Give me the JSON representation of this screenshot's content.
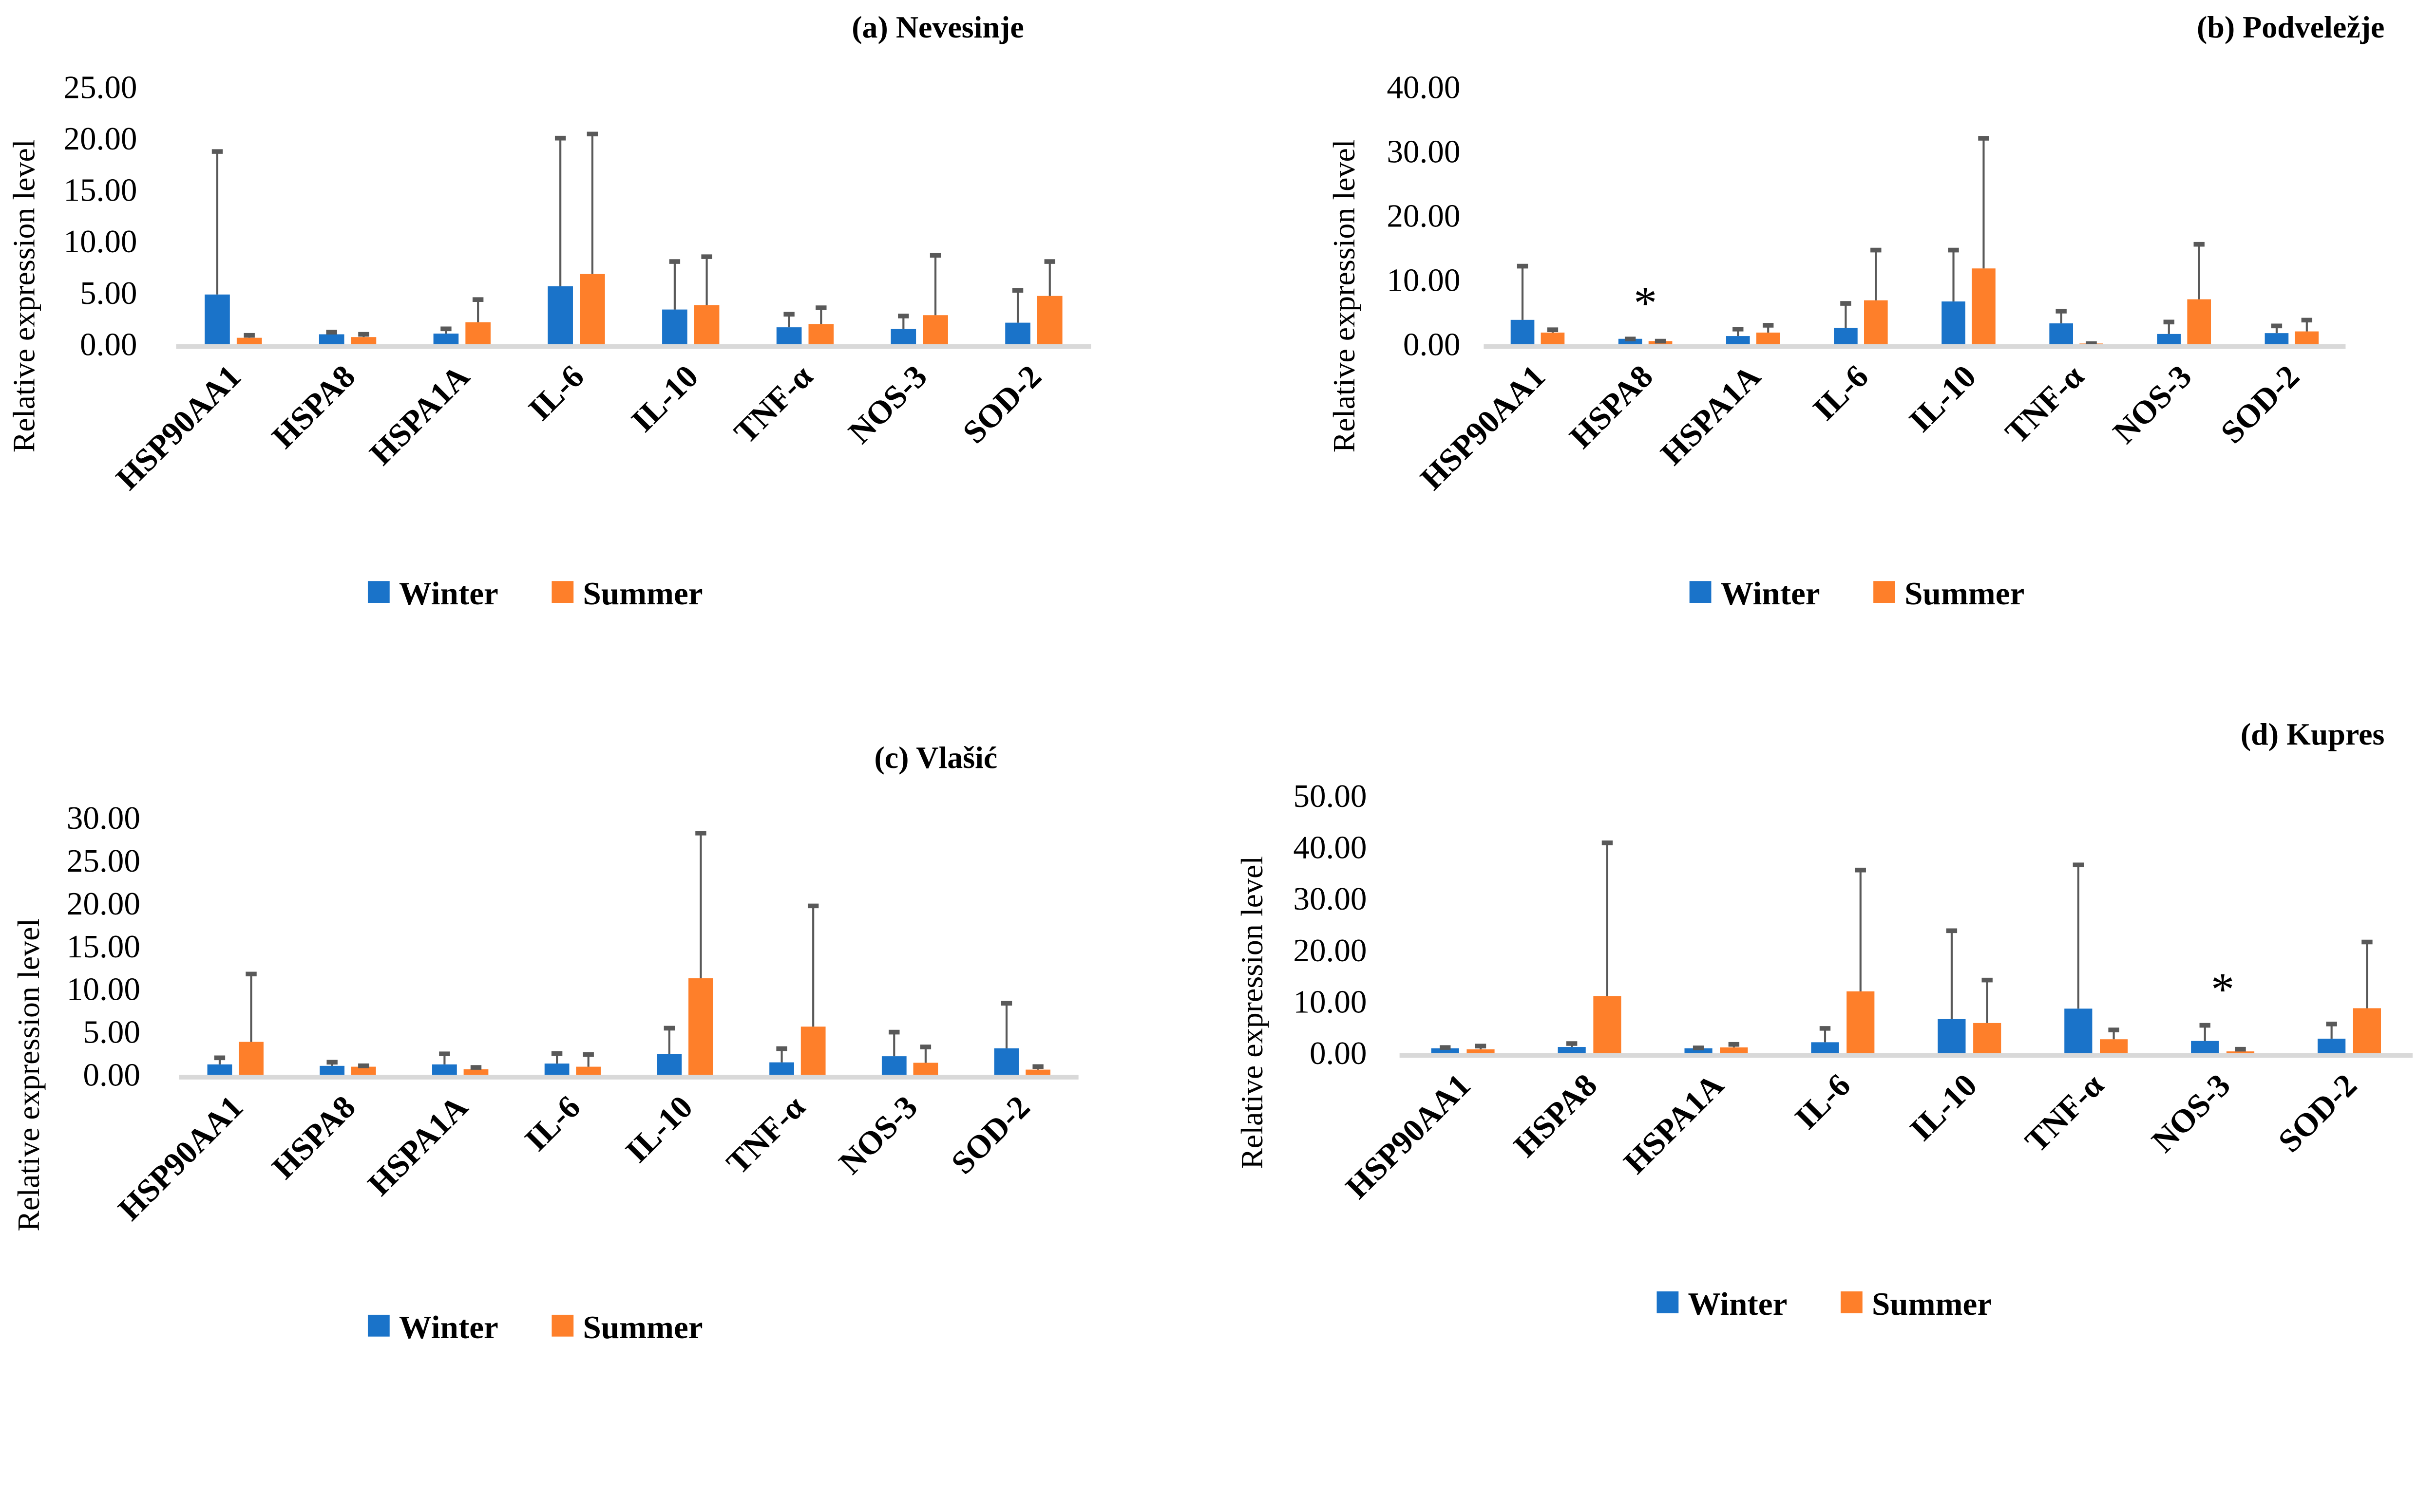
{
  "colors": {
    "winter": "#1a73c9",
    "summer": "#fe7f2a",
    "error": "#595959",
    "baseline": "#d9d9d9"
  },
  "chart_data": [
    {
      "type": "bar",
      "title": "(a) Nevesinje",
      "ylabel": "Relative expression level",
      "xlabel": "",
      "ylim": [
        0,
        25
      ],
      "yticks": [
        "0.00",
        "5.00",
        "10.00",
        "15.00",
        "20.00",
        "25.00"
      ],
      "categories": [
        "HSP90AA1",
        "HSPA8",
        "HSPA1A",
        "IL-6",
        "IL-10",
        "TNF-α",
        "NOS-3",
        "SOD-2"
      ],
      "series": [
        {
          "name": "Winter",
          "values": [
            4.84,
            0.97,
            1.04,
            5.64,
            3.38,
            1.65,
            1.48,
            2.1
          ],
          "error_upper": [
            18.9,
            1.33,
            1.65,
            20.2,
            8.2,
            3.07,
            2.9,
            5.4
          ]
        },
        {
          "name": "Summer",
          "values": [
            0.63,
            0.7,
            2.14,
            6.83,
            3.81,
            1.97,
            2.83,
            4.7
          ],
          "error_upper": [
            1.02,
            1.12,
            4.5,
            20.6,
            8.67,
            3.7,
            8.8,
            8.2
          ]
        }
      ],
      "significance": [],
      "legend": "bottom",
      "grid": false
    },
    {
      "type": "bar",
      "title": "(b) Podveležje",
      "ylabel": "Relative expression level",
      "xlabel": "",
      "ylim": [
        0,
        40
      ],
      "yticks": [
        "0.00",
        "10.00",
        "20.00",
        "30.00",
        "40.00"
      ],
      "categories": [
        "HSP90AA1",
        "HSPA8",
        "HSPA1A",
        "IL-6",
        "IL-10",
        "TNF-α",
        "NOS-3",
        "SOD-2"
      ],
      "series": [
        {
          "name": "Winter",
          "values": [
            3.8,
            0.85,
            1.28,
            2.55,
            6.66,
            3.25,
            1.6,
            1.73
          ],
          "error_upper": [
            12.4,
            1.06,
            2.6,
            6.6,
            14.9,
            5.4,
            3.7,
            3.1
          ]
        },
        {
          "name": "Summer",
          "values": [
            1.82,
            0.49,
            1.82,
            6.84,
            11.8,
            0.12,
            7.0,
            2.0
          ],
          "error_upper": [
            2.5,
            0.73,
            3.2,
            14.9,
            32.3,
            0.33,
            15.8,
            4.0
          ]
        }
      ],
      "significance": [
        {
          "category": "HSPA8",
          "label": "*"
        }
      ],
      "legend": "bottom",
      "grid": false
    },
    {
      "type": "bar",
      "title": "(c) Vlašić",
      "ylabel": "Relative expression level",
      "xlabel": "",
      "ylim": [
        0,
        30
      ],
      "yticks": [
        "0.00",
        "5.00",
        "10.00",
        "15.00",
        "20.00",
        "25.00",
        "30.00"
      ],
      "categories": [
        "HSP90AA1",
        "HSPA8",
        "HSPA1A",
        "IL-6",
        "IL-10",
        "TNF-α",
        "NOS-3",
        "SOD-2"
      ],
      "series": [
        {
          "name": "Winter",
          "values": [
            1.22,
            1.05,
            1.22,
            1.32,
            2.44,
            1.46,
            2.17,
            3.1
          ],
          "error_upper": [
            2.17,
            1.66,
            2.63,
            2.68,
            5.63,
            3.24,
            5.17,
            8.54
          ]
        },
        {
          "name": "Summer",
          "values": [
            3.85,
            0.95,
            0.66,
            0.95,
            11.27,
            5.63,
            1.41,
            0.61
          ],
          "error_upper": [
            11.95,
            1.24,
            1.05,
            2.56,
            28.4,
            19.9,
            3.44,
            1.15
          ]
        }
      ],
      "significance": [],
      "legend": "bottom",
      "grid": false
    },
    {
      "type": "bar",
      "title": "(d) Kupres",
      "ylabel": "Relative expression level",
      "xlabel": "",
      "ylim": [
        0,
        50
      ],
      "yticks": [
        "0.00",
        "10.00",
        "20.00",
        "30.00",
        "40.00",
        "50.00"
      ],
      "categories": [
        "HSP90AA1",
        "HSPA8",
        "HSPA1A",
        "IL-6",
        "IL-10",
        "TNF-α",
        "NOS-3",
        "SOD-2"
      ],
      "series": [
        {
          "name": "Winter",
          "values": [
            0.93,
            1.18,
            0.93,
            2.1,
            6.6,
            8.64,
            2.35,
            2.8
          ],
          "error_upper": [
            1.38,
            2.15,
            1.3,
            5.1,
            24.1,
            36.9,
            5.7,
            5.96
          ]
        },
        {
          "name": "Summer",
          "values": [
            0.73,
            11.1,
            1.1,
            12.0,
            5.84,
            2.68,
            0.32,
            8.72
          ],
          "error_upper": [
            1.66,
            41.2,
            1.99,
            35.9,
            14.5,
            4.8,
            1.05,
            21.9
          ]
        }
      ],
      "significance": [
        {
          "category": "NOS-3",
          "label": "*"
        }
      ],
      "legend": "bottom",
      "grid": false
    }
  ]
}
